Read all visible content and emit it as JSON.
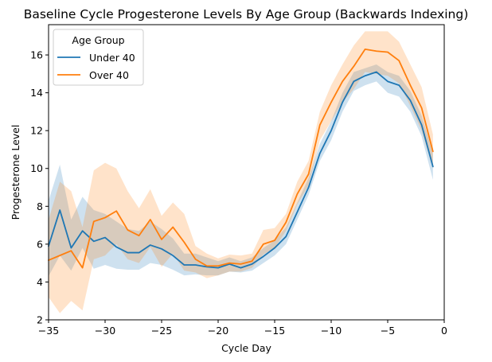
{
  "chart_data": {
    "type": "line",
    "title": "Baseline Cycle Progesterone Levels By Age Group (Backwards Indexing)",
    "xlabel": "Cycle Day",
    "ylabel": "Progesterone Level",
    "xlim": [
      -35,
      0
    ],
    "ylim": [
      2,
      17.6
    ],
    "xticks": [
      -35,
      -30,
      -25,
      -20,
      -15,
      -10,
      -5,
      0
    ],
    "xtick_labels": [
      "−35",
      "−30",
      "−25",
      "−20",
      "−15",
      "−10",
      "−5",
      "0"
    ],
    "yticks": [
      2,
      4,
      6,
      8,
      10,
      12,
      14,
      16
    ],
    "yticks_labels": [
      "2",
      "4",
      "6",
      "8",
      "10",
      "12",
      "14",
      "16"
    ],
    "grid": false,
    "legend": {
      "title": "Age Group",
      "placement": "top-left"
    },
    "x": [
      -35,
      -34,
      -33,
      -32,
      -31,
      -30,
      -29,
      -28,
      -27,
      -26,
      -25,
      -24,
      -23,
      -22,
      -21,
      -20,
      -19,
      -18,
      -17,
      -16,
      -15,
      -14,
      -13,
      -12,
      -11,
      -10,
      -9,
      -8,
      -7,
      -6,
      -5,
      -4,
      -3,
      -2,
      -1
    ],
    "series": [
      {
        "name": "Under 40",
        "color": "#1f77b4",
        "values": [
          5.9,
          7.8,
          5.8,
          6.7,
          6.15,
          6.35,
          5.85,
          5.55,
          5.55,
          5.95,
          5.75,
          5.4,
          4.9,
          4.9,
          4.8,
          4.75,
          4.95,
          4.75,
          4.95,
          5.35,
          5.8,
          6.4,
          7.7,
          9.0,
          10.8,
          12.0,
          13.5,
          14.6,
          14.9,
          15.1,
          14.6,
          14.4,
          13.6,
          12.3,
          10.1
        ],
        "ci_lower": [
          4.3,
          5.4,
          4.6,
          5.8,
          4.7,
          4.9,
          4.7,
          4.65,
          4.65,
          5.0,
          4.9,
          4.65,
          4.35,
          4.4,
          4.35,
          4.35,
          4.55,
          4.5,
          4.6,
          5.0,
          5.4,
          6.0,
          7.3,
          8.6,
          10.4,
          11.5,
          13.0,
          14.1,
          14.4,
          14.6,
          14.0,
          13.8,
          13.0,
          11.7,
          9.4
        ],
        "ci_upper": [
          8.3,
          10.2,
          7.3,
          8.5,
          7.8,
          7.6,
          7.2,
          6.8,
          6.7,
          7.2,
          6.8,
          6.3,
          5.5,
          5.5,
          5.3,
          5.1,
          5.3,
          5.1,
          5.3,
          5.8,
          6.2,
          6.9,
          8.2,
          9.5,
          11.3,
          12.5,
          14.0,
          15.1,
          15.3,
          15.5,
          15.1,
          14.9,
          14.1,
          12.8,
          10.8
        ]
      },
      {
        "name": "Over 40",
        "color": "#ff7f0e",
        "values": [
          5.15,
          5.4,
          5.65,
          4.75,
          7.2,
          7.4,
          7.75,
          6.75,
          6.45,
          7.3,
          6.25,
          6.9,
          6.1,
          5.2,
          4.85,
          4.85,
          5.0,
          4.95,
          5.1,
          6.0,
          6.2,
          7.15,
          8.65,
          9.7,
          12.3,
          13.5,
          14.6,
          15.4,
          16.3,
          16.2,
          16.15,
          15.7,
          14.4,
          13.2,
          10.9
        ],
        "ci_lower": [
          3.2,
          2.35,
          3.0,
          2.5,
          5.2,
          5.4,
          6.0,
          5.2,
          5.0,
          5.85,
          4.8,
          5.5,
          4.6,
          4.5,
          4.2,
          4.35,
          4.55,
          4.55,
          4.75,
          5.45,
          5.8,
          6.7,
          8.1,
          9.1,
          11.5,
          12.5,
          13.5,
          14.2,
          15.1,
          15.0,
          14.9,
          14.5,
          13.3,
          12.0,
          10.0
        ],
        "ci_upper": [
          7.3,
          9.3,
          8.8,
          6.9,
          9.9,
          10.3,
          10.0,
          8.8,
          7.9,
          8.9,
          7.5,
          8.2,
          7.6,
          5.9,
          5.5,
          5.25,
          5.45,
          5.4,
          5.5,
          6.75,
          6.85,
          7.6,
          9.3,
          10.4,
          13.0,
          14.4,
          15.5,
          16.5,
          17.25,
          17.25,
          17.25,
          16.7,
          15.5,
          14.3,
          11.8
        ]
      }
    ]
  }
}
